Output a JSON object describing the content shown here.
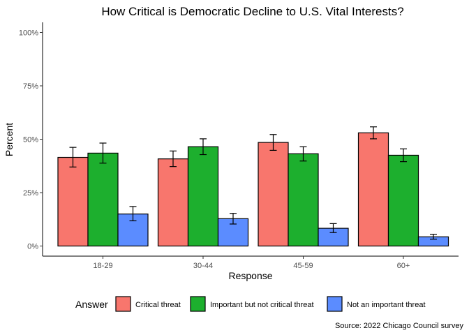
{
  "chart_data": {
    "type": "bar",
    "title": "How Critical is Democratic Decline to U.S. Vital Interests?",
    "xlabel": "Response",
    "ylabel": "Percent",
    "categories": [
      "18-29",
      "30-44",
      "45-59",
      "60+"
    ],
    "ylim": [
      0,
      100
    ],
    "yticks": [
      0,
      25,
      50,
      75,
      100
    ],
    "ytick_labels": [
      "0%",
      "25%",
      "50%",
      "75%",
      "100%"
    ],
    "series": [
      {
        "name": "Critical threat",
        "color": "#F8766D",
        "values": [
          41.5,
          40.8,
          48.5,
          53.0
        ],
        "err_low": [
          37.0,
          37.2,
          44.8,
          50.2
        ],
        "err_high": [
          46.2,
          44.5,
          52.2,
          55.8
        ]
      },
      {
        "name": "Important but not critical threat",
        "color": "#1DAF2E",
        "values": [
          43.5,
          46.5,
          43.2,
          42.5
        ],
        "err_low": [
          38.8,
          42.8,
          39.8,
          39.5
        ],
        "err_high": [
          48.2,
          50.2,
          46.5,
          45.5
        ]
      },
      {
        "name": "Not an important threat",
        "color": "#5B8CFF",
        "values": [
          15.0,
          12.8,
          8.3,
          4.3
        ],
        "err_low": [
          11.8,
          10.3,
          6.3,
          3.2
        ],
        "err_high": [
          18.5,
          15.3,
          10.5,
          5.5
        ]
      }
    ],
    "legend": {
      "title": "Answer",
      "position": "bottom"
    },
    "grid": false,
    "caption": "Source: 2022 Chicago Council survey"
  }
}
